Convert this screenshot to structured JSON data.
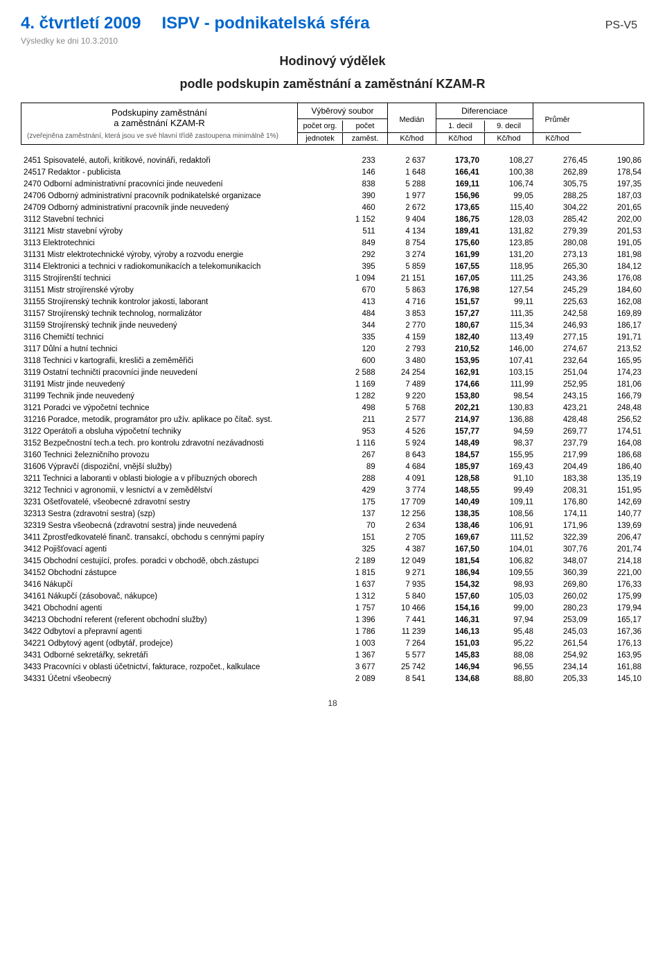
{
  "header": {
    "period": "4. čtvrtletí 2009",
    "source": "ISPV - podnikatelská sféra",
    "tag": "PS-V5",
    "date": "Výsledky ke dni 10.3.2010",
    "title_l1": "Hodinový výdělek",
    "title_l2": "podle podskupin zaměstnání a zaměstnání KZAM-R"
  },
  "th": {
    "left_l1": "Podskupiny zaměstnání",
    "left_l2": "a zaměstnání KZAM-R",
    "left_note": "(zveřejněna zaměstnání, která jsou ve své hlavní třídě zastoupena minimálně 1%)",
    "sample": "Výběrový soubor",
    "org": "počet org.",
    "cnt": "počet",
    "units": "jednotek",
    "emp": "zaměst.",
    "median": "Medián",
    "diff": "Diferenciace",
    "d1": "1. decil",
    "d9": "9. decil",
    "avg": "Průměr",
    "kch": "Kč/hod"
  },
  "rows": [
    {
      "i": 1,
      "name": "2451 Spisovatelé, autoři, kritikové, novináři, redaktoři",
      "v": [
        "233",
        "2 637",
        "173,70",
        "108,27",
        "276,45",
        "190,86"
      ]
    },
    {
      "i": 2,
      "name": "24517 Redaktor - publicista",
      "v": [
        "146",
        "1 648",
        "166,41",
        "100,38",
        "262,89",
        "178,54"
      ]
    },
    {
      "i": 1,
      "name": "2470 Odborní administrativní pracovníci jinde neuvedení",
      "v": [
        "838",
        "5 288",
        "169,11",
        "106,74",
        "305,75",
        "197,35"
      ]
    },
    {
      "i": 2,
      "name": "24706 Odborný administrativní pracovník podnikatelské organizace",
      "v": [
        "390",
        "1 977",
        "156,96",
        "99,05",
        "288,25",
        "187,03"
      ]
    },
    {
      "i": 2,
      "name": "24709 Odborný administrativní pracovník jinde neuvedený",
      "v": [
        "460",
        "2 672",
        "173,65",
        "115,40",
        "304,22",
        "201,65"
      ]
    },
    {
      "i": 1,
      "name": "3112 Stavební technici",
      "v": [
        "1 152",
        "9 404",
        "186,75",
        "128,03",
        "285,42",
        "202,00"
      ]
    },
    {
      "i": 2,
      "name": "31121 Mistr stavební výroby",
      "v": [
        "511",
        "4 134",
        "189,41",
        "131,82",
        "279,39",
        "201,53"
      ]
    },
    {
      "i": 1,
      "name": "3113 Elektrotechnici",
      "v": [
        "849",
        "8 754",
        "175,60",
        "123,85",
        "280,08",
        "191,05"
      ]
    },
    {
      "i": 2,
      "name": "31131 Mistr elektrotechnické výroby, výroby a rozvodu energie",
      "v": [
        "292",
        "3 274",
        "161,99",
        "131,20",
        "273,13",
        "181,98"
      ]
    },
    {
      "i": 1,
      "name": "3114 Elektronici a technici v radiokomunikacích a telekomunikacích",
      "v": [
        "395",
        "5 859",
        "167,55",
        "118,95",
        "265,30",
        "184,12"
      ]
    },
    {
      "i": 1,
      "name": "3115 Strojírenští technici",
      "v": [
        "1 094",
        "21 151",
        "167,05",
        "111,25",
        "243,36",
        "176,08"
      ]
    },
    {
      "i": 2,
      "name": "31151 Mistr strojírenské výroby",
      "v": [
        "670",
        "5 863",
        "176,98",
        "127,54",
        "245,29",
        "184,60"
      ]
    },
    {
      "i": 2,
      "name": "31155 Strojírenský technik kontrolor jakosti, laborant",
      "v": [
        "413",
        "4 716",
        "151,57",
        "99,11",
        "225,63",
        "162,08"
      ]
    },
    {
      "i": 2,
      "name": "31157 Strojírenský technik technolog, normalizátor",
      "v": [
        "484",
        "3 853",
        "157,27",
        "111,35",
        "242,58",
        "169,89"
      ]
    },
    {
      "i": 2,
      "name": "31159 Strojírenský technik jinde neuvedený",
      "v": [
        "344",
        "2 770",
        "180,67",
        "115,34",
        "246,93",
        "186,17"
      ]
    },
    {
      "i": 1,
      "name": "3116 Chemičtí technici",
      "v": [
        "335",
        "4 159",
        "182,40",
        "113,49",
        "277,15",
        "191,71"
      ]
    },
    {
      "i": 1,
      "name": "3117 Důlní a hutní technici",
      "v": [
        "120",
        "2 793",
        "210,52",
        "146,00",
        "274,67",
        "213,52"
      ]
    },
    {
      "i": 1,
      "name": "3118 Technici v kartografii, kresliči a zeměměřiči",
      "v": [
        "600",
        "3 480",
        "153,95",
        "107,41",
        "232,64",
        "165,95"
      ]
    },
    {
      "i": 1,
      "name": "3119 Ostatní techničtí pracovníci jinde neuvedení",
      "v": [
        "2 588",
        "24 254",
        "162,91",
        "103,15",
        "251,04",
        "174,23"
      ]
    },
    {
      "i": 2,
      "name": "31191 Mistr jinde neuvedený",
      "v": [
        "1 169",
        "7 489",
        "174,66",
        "111,99",
        "252,95",
        "181,06"
      ]
    },
    {
      "i": 2,
      "name": "31199 Technik jinde neuvedený",
      "v": [
        "1 282",
        "9 220",
        "153,80",
        "98,54",
        "243,15",
        "166,79"
      ]
    },
    {
      "i": 1,
      "name": "3121 Poradci ve výpočetní technice",
      "v": [
        "498",
        "5 768",
        "202,21",
        "130,83",
        "423,21",
        "248,48"
      ]
    },
    {
      "i": 2,
      "name": "31216 Poradce, metodik, programátor pro užív. aplikace po čítač. syst.",
      "v": [
        "211",
        "2 577",
        "214,97",
        "136,88",
        "428,48",
        "256,52"
      ]
    },
    {
      "i": 1,
      "name": "3122 Operátoři a obsluha výpočetní techniky",
      "v": [
        "953",
        "4 526",
        "157,77",
        "94,59",
        "269,77",
        "174,51"
      ]
    },
    {
      "i": 1,
      "name": "3152 Bezpečnostní tech.a tech. pro kontrolu zdravotní nezávadnosti",
      "v": [
        "1 116",
        "5 924",
        "148,49",
        "98,37",
        "237,79",
        "164,08"
      ]
    },
    {
      "i": 1,
      "name": "3160 Technici železničního provozu",
      "v": [
        "267",
        "8 643",
        "184,57",
        "155,95",
        "217,99",
        "186,68"
      ]
    },
    {
      "i": 2,
      "name": "31606 Výpravčí (dispoziční, vnější služby)",
      "v": [
        "89",
        "4 684",
        "185,97",
        "169,43",
        "204,49",
        "186,40"
      ]
    },
    {
      "i": 1,
      "name": "3211 Technici a laboranti v oblasti biologie a v příbuzných oborech",
      "v": [
        "288",
        "4 091",
        "128,58",
        "91,10",
        "183,38",
        "135,19"
      ]
    },
    {
      "i": 1,
      "name": "3212 Technici v agronomii, v lesnictví a v zemědělství",
      "v": [
        "429",
        "3 774",
        "148,55",
        "99,49",
        "208,31",
        "151,95"
      ]
    },
    {
      "i": 1,
      "name": "3231 Ošetřovatelé, všeobecné zdravotní sestry",
      "v": [
        "175",
        "17 709",
        "140,49",
        "109,11",
        "176,80",
        "142,69"
      ]
    },
    {
      "i": 2,
      "name": "32313 Sestra (zdravotní sestra) (szp)",
      "v": [
        "137",
        "12 256",
        "138,35",
        "108,56",
        "174,11",
        "140,77"
      ]
    },
    {
      "i": 2,
      "name": "32319 Sestra všeobecná (zdravotní sestra) jinde neuvedená",
      "v": [
        "70",
        "2 634",
        "138,46",
        "106,91",
        "171,96",
        "139,69"
      ]
    },
    {
      "i": 1,
      "name": "3411 Zprostředkovatelé finanč. transakcí, obchodu s cennými papíry",
      "v": [
        "151",
        "2 705",
        "169,67",
        "111,52",
        "322,39",
        "206,47"
      ]
    },
    {
      "i": 1,
      "name": "3412 Pojišťovací agenti",
      "v": [
        "325",
        "4 387",
        "167,50",
        "104,01",
        "307,76",
        "201,74"
      ]
    },
    {
      "i": 1,
      "name": "3415 Obchodní cestující, profes. poradci v obchodě, obch.zástupci",
      "v": [
        "2 189",
        "12 049",
        "181,54",
        "106,82",
        "348,07",
        "214,18"
      ]
    },
    {
      "i": 2,
      "name": "34152 Obchodní zástupce",
      "v": [
        "1 815",
        "9 271",
        "186,94",
        "109,55",
        "360,39",
        "221,00"
      ]
    },
    {
      "i": 1,
      "name": "3416 Nákupčí",
      "v": [
        "1 637",
        "7 935",
        "154,32",
        "98,93",
        "269,80",
        "176,33"
      ]
    },
    {
      "i": 2,
      "name": "34161 Nákupčí (zásobovač, nákupce)",
      "v": [
        "1 312",
        "5 840",
        "157,60",
        "105,03",
        "260,02",
        "175,99"
      ]
    },
    {
      "i": 1,
      "name": "3421 Obchodní agenti",
      "v": [
        "1 757",
        "10 466",
        "154,16",
        "99,00",
        "280,23",
        "179,94"
      ]
    },
    {
      "i": 2,
      "name": "34213 Obchodní referent (referent obchodní služby)",
      "v": [
        "1 396",
        "7 441",
        "146,31",
        "97,94",
        "253,09",
        "165,17"
      ]
    },
    {
      "i": 1,
      "name": "3422 Odbytoví a přepravní agenti",
      "v": [
        "1 786",
        "11 239",
        "146,13",
        "95,48",
        "245,03",
        "167,36"
      ]
    },
    {
      "i": 2,
      "name": "34221 Odbytový agent (odbytář, prodejce)",
      "v": [
        "1 003",
        "7 264",
        "151,03",
        "95,22",
        "261,54",
        "176,13"
      ]
    },
    {
      "i": 1,
      "name": "3431 Odborné sekretářky, sekretáři",
      "v": [
        "1 367",
        "5 577",
        "145,83",
        "88,08",
        "254,92",
        "163,95"
      ]
    },
    {
      "i": 1,
      "name": "3433 Pracovníci v oblasti účetnictví, fakturace, rozpočet., kalkulace",
      "v": [
        "3 677",
        "25 742",
        "146,94",
        "96,55",
        "234,14",
        "161,88"
      ]
    },
    {
      "i": 2,
      "name": "34331 Účetní všeobecný",
      "v": [
        "2 089",
        "8 541",
        "134,68",
        "88,80",
        "205,33",
        "145,10"
      ]
    }
  ],
  "page_num": "18"
}
